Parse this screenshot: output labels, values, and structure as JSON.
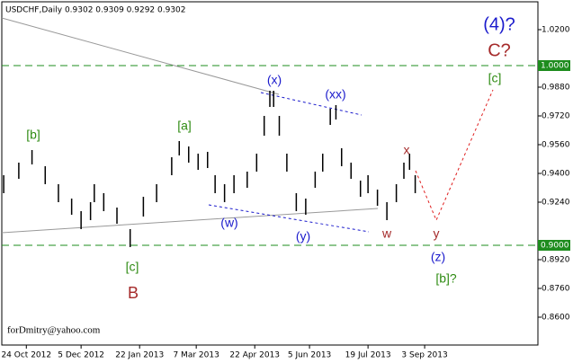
{
  "chart_data": {
    "type": "ohlc",
    "title": "USDCHF,Daily  0.9302 0.9309 0.9292 0.9302",
    "footer": "forDmitry@yahoo.com",
    "x": [
      1,
      9,
      16,
      23,
      30,
      37,
      42,
      47,
      49,
      54,
      61,
      68,
      75,
      82,
      90,
      94,
      99,
      104,
      109,
      113,
      118,
      123,
      130,
      135,
      139,
      142,
      144,
      147,
      151,
      156,
      161,
      166,
      170,
      174,
      177,
      180,
      185,
      190,
      194,
      199,
      204,
      209,
      213,
      216,
      219
    ],
    "series": [
      {
        "name": "high",
        "color": "#000000",
        "values": [
          0.939,
          0.946,
          0.953,
          0.944,
          0.934,
          0.926,
          0.919,
          0.924,
          0.934,
          0.929,
          0.921,
          0.909,
          0.927,
          0.934,
          0.949,
          0.958,
          0.955,
          0.951,
          0.952,
          0.939,
          0.934,
          0.939,
          0.941,
          0.951,
          0.972,
          0.986,
          0.986,
          0.972,
          0.951,
          0.929,
          0.926,
          0.941,
          0.951,
          0.976,
          0.978,
          0.954,
          0.946,
          0.936,
          0.939,
          0.931,
          0.924,
          0.934,
          0.946,
          0.951,
          0.939
        ]
      },
      {
        "name": "low",
        "color": "#000000",
        "values": [
          0.929,
          0.937,
          0.945,
          0.934,
          0.924,
          0.917,
          0.909,
          0.914,
          0.924,
          0.919,
          0.912,
          0.899,
          0.916,
          0.924,
          0.939,
          0.95,
          0.946,
          0.942,
          0.943,
          0.929,
          0.924,
          0.929,
          0.932,
          0.941,
          0.961,
          0.977,
          0.977,
          0.961,
          0.941,
          0.919,
          0.917,
          0.932,
          0.941,
          0.967,
          0.97,
          0.944,
          0.937,
          0.927,
          0.929,
          0.922,
          0.914,
          0.924,
          0.937,
          0.942,
          0.929
        ]
      }
    ],
    "xlim": [
      0,
      284
    ],
    "xticks": [
      {
        "value": 13,
        "label": "24 Oct 2012"
      },
      {
        "value": 42,
        "label": "5 Dec 2012"
      },
      {
        "value": 73,
        "label": "22 Jan 2013"
      },
      {
        "value": 103,
        "label": "7 Mar 2013"
      },
      {
        "value": 134,
        "label": "22 Apr 2013"
      },
      {
        "value": 163,
        "label": "5 Jun 2013"
      },
      {
        "value": 194,
        "label": "19 Jul 2013"
      },
      {
        "value": 224,
        "label": "3 Sep 2013"
      }
    ],
    "ylim": [
      0.8445,
      1.0355
    ],
    "yticks": [
      {
        "value": 1.02,
        "label": "1.0200"
      },
      {
        "value": 0.988,
        "label": "0.9880"
      },
      {
        "value": 0.972,
        "label": "0.9720"
      },
      {
        "value": 0.956,
        "label": "0.9560"
      },
      {
        "value": 0.94,
        "label": "0.9400"
      },
      {
        "value": 0.924,
        "label": "0.9240"
      },
      {
        "value": 0.892,
        "label": "0.8920"
      },
      {
        "value": 0.876,
        "label": "0.8760"
      },
      {
        "value": 0.86,
        "label": "0.8600"
      }
    ],
    "levels": [
      {
        "value": 1.0,
        "label": "1.0000"
      },
      {
        "value": 0.9,
        "label": "0.9000"
      }
    ],
    "level_color": "#1e8c1e",
    "annotations": [
      {
        "text": "(4)?",
        "color": "#1a1acc"
      },
      {
        "text": "C?",
        "color": "#a52a2a"
      },
      {
        "text": "[c]",
        "color": "#2e8b12"
      },
      {
        "text": "(x)",
        "color": "#1a1acc"
      },
      {
        "text": "(xx)",
        "color": "#1a1acc"
      },
      {
        "text": "[a]",
        "color": "#2e8b12"
      },
      {
        "text": "[b]",
        "color": "#2e8b12"
      },
      {
        "text": "x",
        "color": "#a52a2a"
      },
      {
        "text": "(w)",
        "color": "#1a1acc"
      },
      {
        "text": "(y)",
        "color": "#1a1acc"
      },
      {
        "text": "w",
        "color": "#a52a2a"
      },
      {
        "text": "y",
        "color": "#a52a2a"
      },
      {
        "text": "(z)",
        "color": "#1a1acc"
      },
      {
        "text": "[c]",
        "color": "#2e8b12"
      },
      {
        "text": "[b]?",
        "color": "#2e8b12"
      },
      {
        "text": "B",
        "color": "#a52a2a"
      }
    ]
  }
}
